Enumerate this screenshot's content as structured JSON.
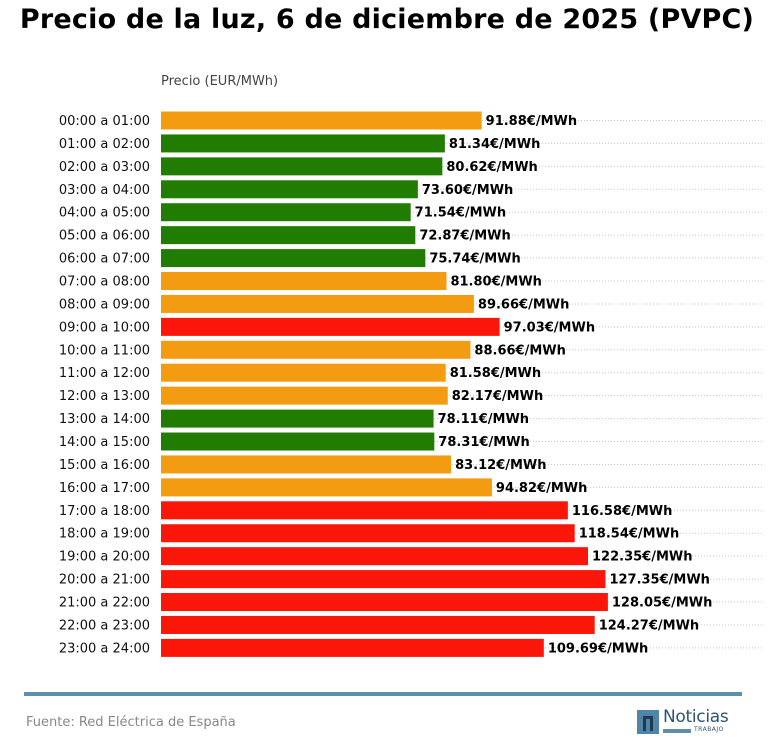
{
  "chart_data": {
    "type": "bar",
    "orientation": "horizontal",
    "title": "Precio de la luz, 6 de diciembre de 2025 (PVPC)",
    "xlabel": "Precio (EUR/MWh)",
    "ylabel": "",
    "xlim": [
      0,
      175
    ],
    "grid": "dotted horizontal lines per row",
    "value_suffix": "€/MWh",
    "categories": [
      "00:00 a 01:00",
      "01:00 a 02:00",
      "02:00 a 03:00",
      "03:00 a 04:00",
      "04:00 a 05:00",
      "05:00 a 06:00",
      "06:00 a 07:00",
      "07:00 a 08:00",
      "08:00 a 09:00",
      "09:00 a 10:00",
      "10:00 a 11:00",
      "11:00 a 12:00",
      "12:00 a 13:00",
      "13:00 a 14:00",
      "14:00 a 15:00",
      "15:00 a 16:00",
      "16:00 a 17:00",
      "17:00 a 18:00",
      "18:00 a 19:00",
      "19:00 a 20:00",
      "20:00 a 21:00",
      "21:00 a 22:00",
      "22:00 a 23:00",
      "23:00 a 24:00"
    ],
    "values": [
      91.88,
      81.34,
      80.62,
      73.6,
      71.54,
      72.87,
      75.74,
      81.8,
      89.66,
      97.03,
      88.66,
      81.58,
      82.17,
      78.11,
      78.31,
      83.12,
      94.82,
      116.58,
      118.54,
      122.35,
      127.35,
      128.05,
      124.27,
      109.69
    ],
    "data_labels": [
      "91.88€/MWh",
      "81.34€/MWh",
      "80.62€/MWh",
      "73.60€/MWh",
      "71.54€/MWh",
      "72.87€/MWh",
      "75.74€/MWh",
      "81.80€/MWh",
      "89.66€/MWh",
      "97.03€/MWh",
      "88.66€/MWh",
      "81.58€/MWh",
      "82.17€/MWh",
      "78.11€/MWh",
      "78.31€/MWh",
      "83.12€/MWh",
      "94.82€/MWh",
      "116.58€/MWh",
      "118.54€/MWh",
      "122.35€/MWh",
      "127.35€/MWh",
      "128.05€/MWh",
      "124.27€/MWh",
      "109.69€/MWh"
    ],
    "levels": [
      "medio",
      "bajo",
      "bajo",
      "bajo",
      "bajo",
      "bajo",
      "bajo",
      "medio",
      "medio",
      "alto",
      "medio",
      "medio",
      "medio",
      "bajo",
      "bajo",
      "medio",
      "medio",
      "alto",
      "alto",
      "alto",
      "alto",
      "alto",
      "alto",
      "alto"
    ],
    "level_colors": {
      "bajo": "#217d02",
      "medio": "#f39c12",
      "alto": "#fa1609"
    }
  },
  "footer": {
    "source": "Fuente: Red Eléctrica de España",
    "logo_word": "Noticias",
    "logo_sub": "TRABAJO",
    "rule_color": "#5f8ea8"
  }
}
